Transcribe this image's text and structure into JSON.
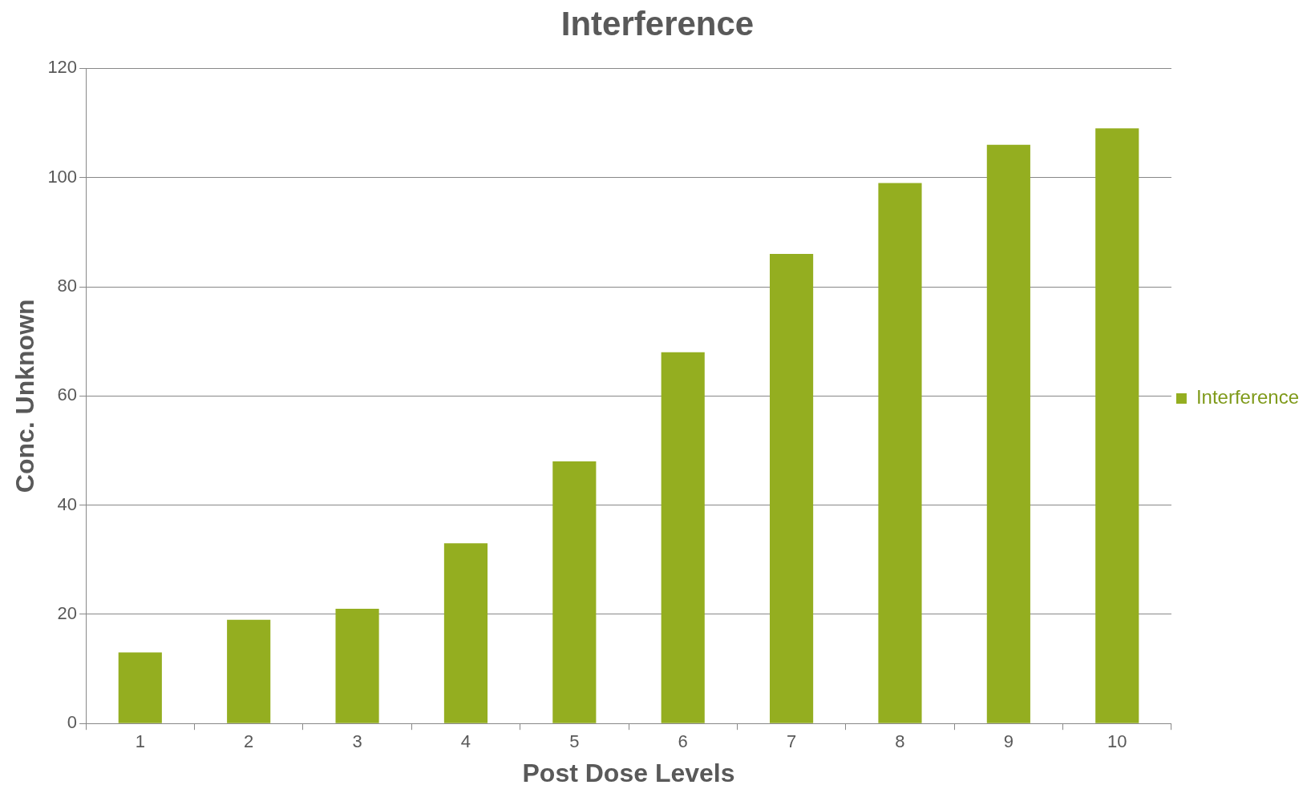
{
  "chart_data": {
    "type": "bar",
    "title": "Interference",
    "xlabel": "Post Dose Levels",
    "ylabel": "Conc. Unknown",
    "categories": [
      "1",
      "2",
      "3",
      "4",
      "5",
      "6",
      "7",
      "8",
      "9",
      "10"
    ],
    "series": [
      {
        "name": "Interference",
        "color": "#94ae20",
        "values": [
          13,
          19,
          21,
          33,
          48,
          68,
          86,
          99,
          106,
          109
        ]
      }
    ],
    "ylim": [
      0,
      120
    ],
    "yticks": [
      0,
      20,
      40,
      60,
      80,
      100,
      120
    ],
    "grid": "y",
    "legend": "right"
  }
}
